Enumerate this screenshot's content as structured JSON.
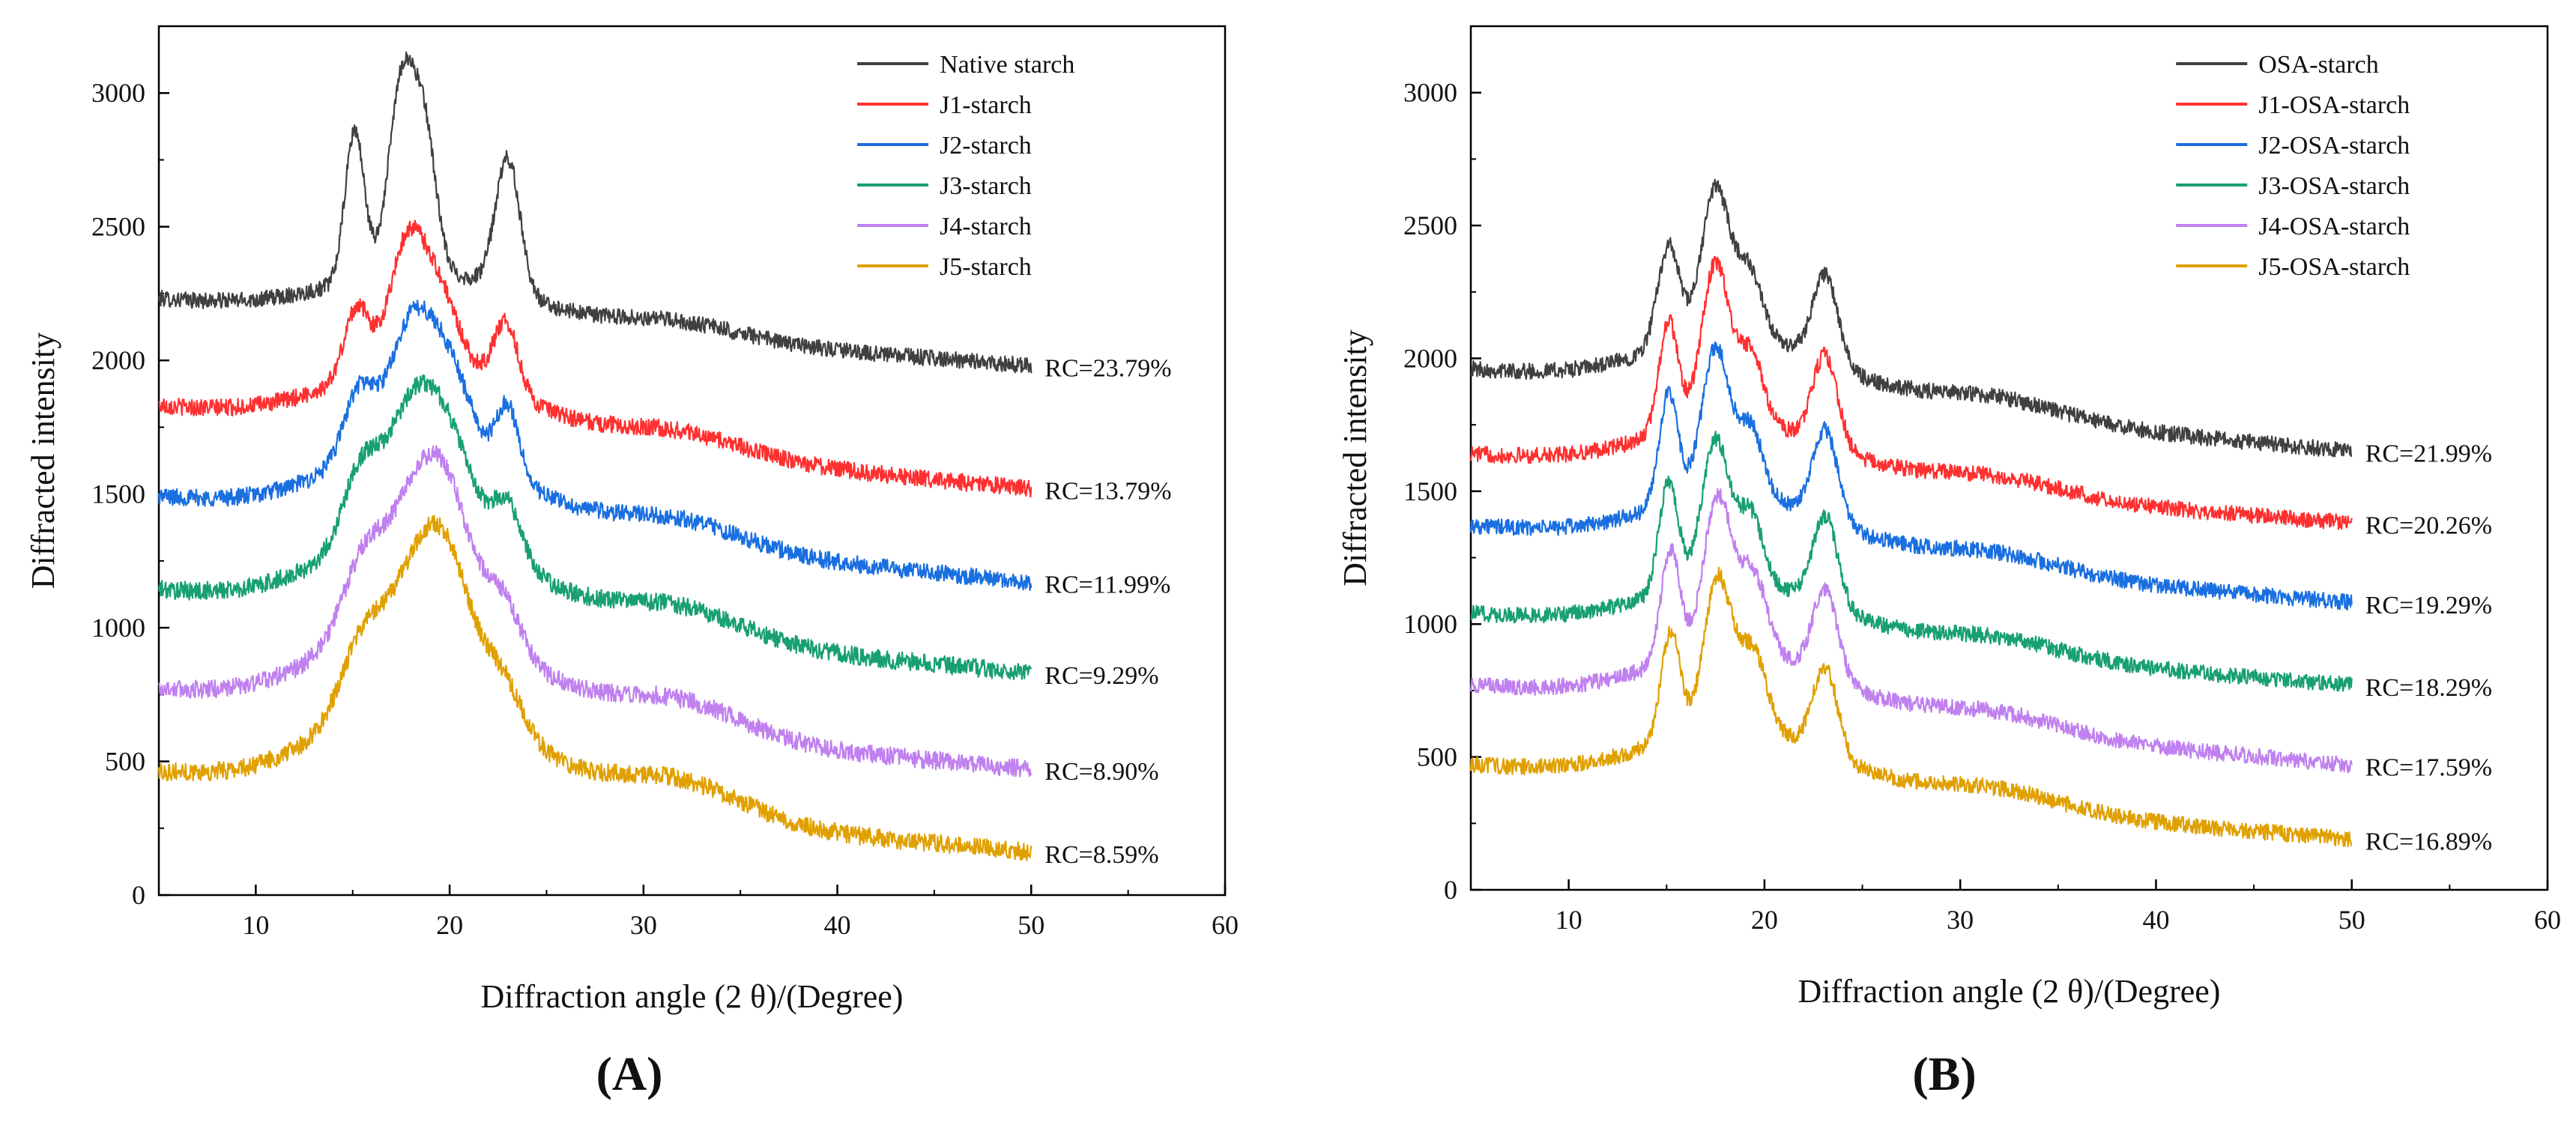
{
  "chart_data": [
    {
      "type": "line",
      "panel_label": "A",
      "panel_label_open": "(",
      "panel_label_close": ")",
      "xlabel": "Diffraction angle (2 θ)/(Degree)",
      "ylabel": "Diffracted intensity",
      "xlim": [
        5,
        60
      ],
      "ylim": [
        0,
        3250
      ],
      "xticks": [
        10,
        20,
        30,
        40,
        50,
        60
      ],
      "yticks": [
        0,
        500,
        1000,
        1500,
        2000,
        2500,
        3000
      ],
      "legend_position": "top-right",
      "x_range_data": [
        5,
        50
      ],
      "series": [
        {
          "name": "Native starch",
          "color": "#404040",
          "rc": "RC=23.79%",
          "baseline": 2230,
          "end": 1980,
          "peaks": [
            [
              15.1,
              560,
              0.7
            ],
            [
              17.6,
              740,
              1.0
            ],
            [
              18.8,
              420,
              0.8
            ],
            [
              23.0,
              500,
              0.9
            ]
          ],
          "hump": 180,
          "noise": 30
        },
        {
          "name": "J1-starch",
          "color": "#ff3030",
          "rc": "RC=13.79%",
          "baseline": 1830,
          "end": 1520,
          "peaks": [
            [
              15.2,
              260,
              0.9
            ],
            [
              17.8,
              440,
              1.3
            ],
            [
              19.5,
              260,
              1.4
            ],
            [
              22.9,
              260,
              0.9
            ]
          ],
          "hump": 250,
          "noise": 32
        },
        {
          "name": "J2-starch",
          "color": "#1a6fe0",
          "rc": "RC=11.99%",
          "baseline": 1490,
          "end": 1170,
          "peaks": [
            [
              15.3,
              250,
              1.1
            ],
            [
              18.0,
              430,
              1.6
            ],
            [
              20.0,
              280,
              1.6
            ],
            [
              23.0,
              260,
              0.8
            ]
          ],
          "hump": 300,
          "noise": 32
        },
        {
          "name": "J3-starch",
          "color": "#18a070",
          "rc": "RC=9.29%",
          "baseline": 1140,
          "end": 830,
          "peaks": [
            [
              15.4,
              260,
              1.3
            ],
            [
              18.0,
              400,
              1.8
            ],
            [
              20.0,
              300,
              1.8
            ],
            [
              23.0,
              200,
              1.0
            ]
          ],
          "hump": 350,
          "noise": 34
        },
        {
          "name": "J4-starch",
          "color": "#c080ef",
          "rc": "RC=8.90%",
          "baseline": 770,
          "end": 470,
          "peaks": [
            [
              15.5,
              250,
              1.5
            ],
            [
              18.2,
              380,
              2.0
            ],
            [
              20.0,
              350,
              1.8
            ],
            [
              22.8,
              170,
              1.2
            ]
          ],
          "hump": 390,
          "noise": 34
        },
        {
          "name": "J5-starch",
          "color": "#e0a000",
          "rc": "RC=8.59%",
          "baseline": 460,
          "end": 160,
          "peaks": [
            [
              15.5,
              240,
              1.6
            ],
            [
              18.3,
              360,
              2.1
            ],
            [
              20.0,
              360,
              1.9
            ],
            [
              22.8,
              150,
              1.3
            ]
          ],
          "hump": 420,
          "noise": 34
        }
      ]
    },
    {
      "type": "line",
      "panel_label": "B",
      "panel_label_open": "(",
      "panel_label_close": ")",
      "xlabel": "Diffraction angle (2 θ)/(Degree)",
      "ylabel": "Diffracted intensity",
      "xlim": [
        5,
        60
      ],
      "ylim": [
        0,
        3250
      ],
      "xticks": [
        10,
        20,
        30,
        40,
        50,
        60
      ],
      "yticks": [
        0,
        500,
        1000,
        1500,
        2000,
        2500,
        3000
      ],
      "legend_position": "top-right",
      "x_range_data": [
        5,
        50
      ],
      "series": [
        {
          "name": "OSA-starch",
          "color": "#404040",
          "rc": "RC=21.99%",
          "baseline": 1960,
          "end": 1650,
          "peaks": [
            [
              15.1,
              380,
              0.8
            ],
            [
              17.5,
              560,
              1.0
            ],
            [
              19.2,
              250,
              0.9
            ],
            [
              23.1,
              330,
              0.9
            ]
          ],
          "hump": 220,
          "noise": 30
        },
        {
          "name": "J1-OSA-starch",
          "color": "#ff3030",
          "rc": "RC=20.26%",
          "baseline": 1640,
          "end": 1380,
          "peaks": [
            [
              15.1,
              420,
              0.7
            ],
            [
              17.5,
              600,
              1.0
            ],
            [
              19.3,
              260,
              0.9
            ],
            [
              23.1,
              340,
              0.9
            ]
          ],
          "hump": 200,
          "noise": 30
        },
        {
          "name": "J2-OSA-starch",
          "color": "#1a6fe0",
          "rc": "RC=19.29%",
          "baseline": 1370,
          "end": 1080,
          "peaks": [
            [
              15.1,
              420,
              0.7
            ],
            [
              17.5,
              560,
              1.0
            ],
            [
              19.3,
              260,
              0.9
            ],
            [
              23.1,
              340,
              0.9
            ]
          ],
          "hump": 200,
          "noise": 30
        },
        {
          "name": "J3-OSA-starch",
          "color": "#18a070",
          "rc": "RC=18.29%",
          "baseline": 1040,
          "end": 770,
          "peaks": [
            [
              15.1,
              420,
              0.7
            ],
            [
              17.5,
              540,
              1.0
            ],
            [
              19.3,
              260,
              0.9
            ],
            [
              23.1,
              340,
              0.9
            ]
          ],
          "hump": 200,
          "noise": 30
        },
        {
          "name": "J4-OSA-starch",
          "color": "#c080ef",
          "rc": "RC=17.59%",
          "baseline": 770,
          "end": 470,
          "peaks": [
            [
              15.2,
              420,
              0.7
            ],
            [
              17.6,
              580,
              1.0
            ],
            [
              19.4,
              300,
              1.0
            ],
            [
              23.1,
              330,
              0.9
            ]
          ],
          "hump": 220,
          "noise": 30
        },
        {
          "name": "J5-OSA-starch",
          "color": "#e0a000",
          "rc": "RC=16.89%",
          "baseline": 470,
          "end": 190,
          "peaks": [
            [
              15.2,
              410,
              0.7
            ],
            [
              17.6,
              570,
              1.0
            ],
            [
              19.4,
              300,
              1.0
            ],
            [
              23.1,
              330,
              0.9
            ]
          ],
          "hump": 220,
          "noise": 30
        }
      ]
    }
  ]
}
